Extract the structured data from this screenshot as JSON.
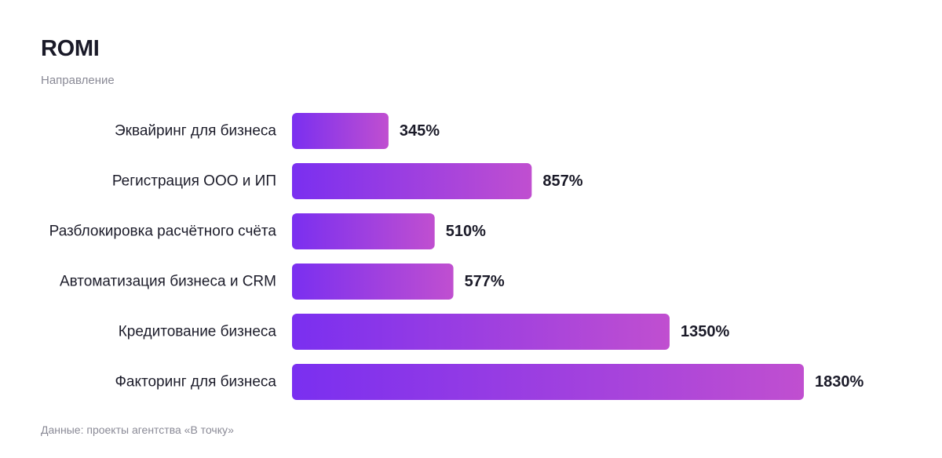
{
  "header": {
    "title": "ROMI",
    "subtitle": "Направление"
  },
  "footer": {
    "source": "Данные: проекты агентства «В точку»"
  },
  "colors": {
    "bar_gradient_start": "#7a2ff0",
    "bar_gradient_end": "#c04fd0"
  },
  "chart_data": {
    "type": "bar",
    "orientation": "horizontal",
    "title": "ROMI",
    "subtitle": "Направление",
    "categories": [
      "Эквайринг для бизнеса",
      "Регистрация ООО и ИП",
      "Разблокировка расчётного счёта",
      "Автоматизация бизнеса и CRM",
      "Кредитование бизнеса",
      "Факторинг для бизнеса"
    ],
    "values": [
      345,
      857,
      510,
      577,
      1350,
      1830
    ],
    "value_labels": [
      "345%",
      "857%",
      "510%",
      "577%",
      "1350%",
      "1830%"
    ],
    "unit": "%",
    "grid": false,
    "legend": "none"
  }
}
